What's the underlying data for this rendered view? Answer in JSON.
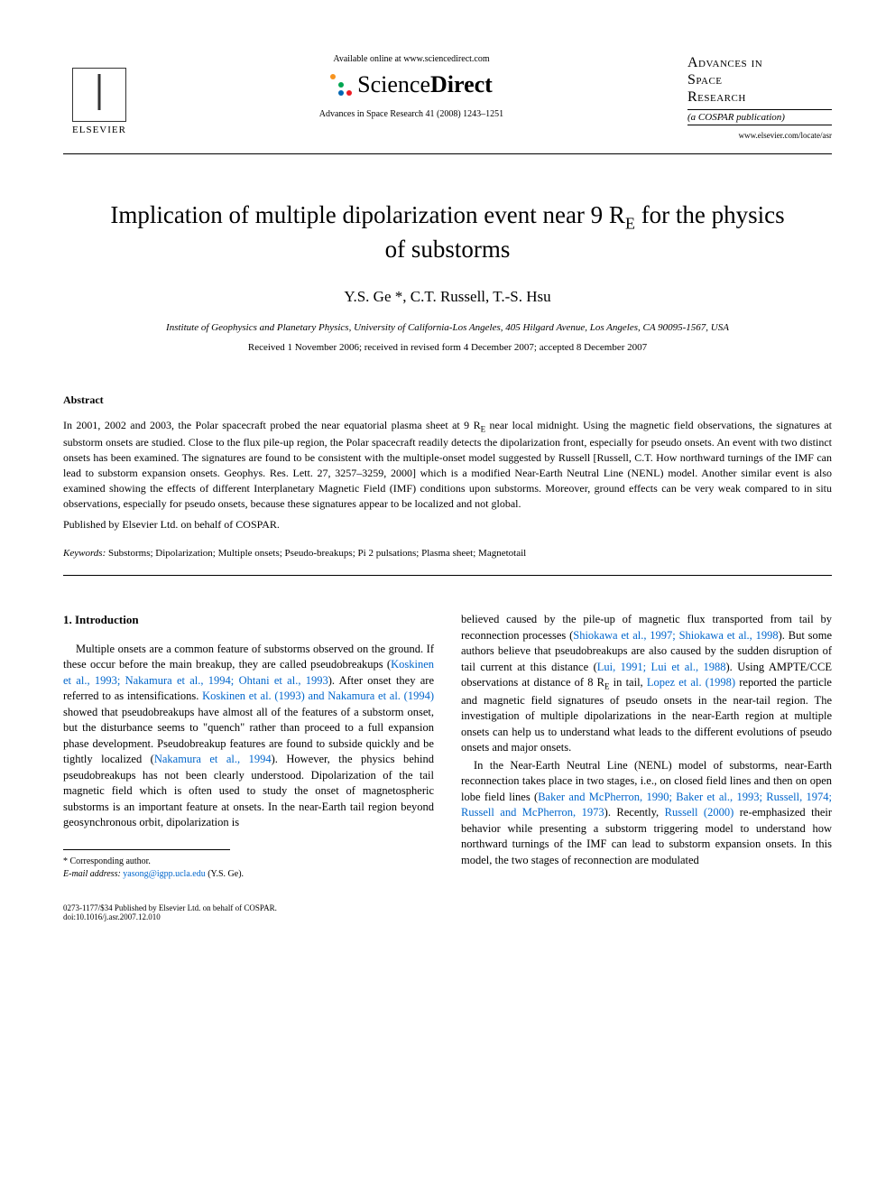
{
  "header": {
    "elsevier_label": "ELSEVIER",
    "available_text": "Available online at www.sciencedirect.com",
    "sciencedirect_brand": "ScienceDirect",
    "journal_ref": "Advances in Space Research 41 (2008) 1243–1251",
    "journal_title_line1": "Advances in",
    "journal_title_line2": "Space",
    "journal_title_line3": "Research",
    "journal_sub": "(a COSPAR publication)",
    "journal_url": "www.elsevier.com/locate/asr",
    "sd_dot_colors": [
      "#f7931e",
      "#fff",
      "#fff",
      "#fff",
      "#00a651",
      "#fff",
      "#fff",
      "#0066b3",
      "#ed1c24"
    ]
  },
  "title_html": "Implication of multiple dipolarization event near 9 R<sub>E</sub> for the physics of substorms",
  "authors": "Y.S. Ge *, C.T. Russell, T.-S. Hsu",
  "affiliation": "Institute of Geophysics and Planetary Physics, University of California-Los Angeles, 405 Hilgard Avenue, Los Angeles, CA 90095-1567, USA",
  "dates": "Received 1 November 2006; received in revised form 4 December 2007; accepted 8 December 2007",
  "abstract": {
    "heading": "Abstract",
    "body_html": "In 2001, 2002 and 2003, the Polar spacecraft probed the near equatorial plasma sheet at 9 R<sub>E</sub> near local midnight. Using the magnetic field observations, the signatures at substorm onsets are studied. Close to the flux pile-up region, the Polar spacecraft readily detects the dipolarization front, especially for pseudo onsets. An event with two distinct onsets has been examined. The signatures are found to be consistent with the multiple-onset model suggested by Russell [Russell, C.T. How northward turnings of the IMF can lead to substorm expansion onsets. Geophys. Res. Lett. 27, 3257–3259, 2000] which is a modified Near-Earth Neutral Line (NENL) model. Another similar event is also examined showing the effects of different Interplanetary Magnetic Field (IMF) conditions upon substorms. Moreover, ground effects can be very weak compared to in situ observations, especially for pseudo onsets, because these signatures appear to be localized and not global.",
    "published": "Published by Elsevier Ltd. on behalf of COSPAR."
  },
  "keywords": {
    "label": "Keywords:",
    "list": "Substorms; Dipolarization; Multiple onsets; Pseudo-breakups; Pi 2 pulsations; Plasma sheet; Magnetotail"
  },
  "section1": {
    "heading": "1. Introduction",
    "col1_html": "Multiple onsets are a common feature of substorms observed on the ground. If these occur before the main breakup, they are called pseudobreakups (<span class=\"cite\">Koskinen et al., 1993; Nakamura et al., 1994; Ohtani et al., 1993</span>). After onset they are referred to as intensifications. <span class=\"cite\">Koskinen et al. (1993) and Nakamura et al. (1994)</span> showed that pseudobreakups have almost all of the features of a substorm onset, but the disturbance seems to \"quench\" rather than proceed to a full expansion phase development. Pseudobreakup features are found to subside quickly and be tightly localized (<span class=\"cite\">Nakamura et al., 1994</span>). However, the physics behind pseudobreakups has not been clearly understood. Dipolarization of the tail magnetic field which is often used to study the onset of magnetospheric substorms is an important feature at onsets. In the near-Earth tail region beyond geosynchronous orbit, dipolarization is",
    "col2_p1_html": "believed caused by the pile-up of magnetic flux transported from tail by reconnection processes (<span class=\"cite\">Shiokawa et al., 1997; Shiokawa et al., 1998</span>). But some authors believe that pseudobreakups are also caused by the sudden disruption of tail current at this distance (<span class=\"cite\">Lui, 1991; Lui et al., 1988</span>). Using AMPTE/CCE observations at distance of 8 R<sub>E</sub> in tail, <span class=\"cite\">Lopez et al. (1998)</span> reported the particle and magnetic field signatures of pseudo onsets in the near-tail region. The investigation of multiple dipolarizations in the near-Earth region at multiple onsets can help us to understand what leads to the different evolutions of pseudo onsets and major onsets.",
    "col2_p2_html": "In the Near-Earth Neutral Line (NENL) model of substorms, near-Earth reconnection takes place in two stages, i.e., on closed field lines and then on open lobe field lines (<span class=\"cite\">Baker and McPherron, 1990; Baker et al., 1993; Russell, 1974; Russell and McPherron, 1973</span>). Recently, <span class=\"cite\">Russell (2000)</span> re-emphasized their behavior while presenting a substorm triggering model to understand how northward turnings of the IMF can lead to substorm expansion onsets. In this model, the two stages of reconnection are modulated"
  },
  "footnote": {
    "corresponding": "* Corresponding author.",
    "email_label": "E-mail address:",
    "email": "yasong@igpp.ucla.edu",
    "email_attribution": "(Y.S. Ge)."
  },
  "footer": {
    "copyright": "0273-1177/$34 Published by Elsevier Ltd. on behalf of COSPAR.",
    "doi": "doi:10.1016/j.asr.2007.12.010"
  },
  "colors": {
    "citation": "#0066cc",
    "text": "#000000",
    "background": "#ffffff"
  },
  "fonts": {
    "body_family": "Georgia, Times New Roman, serif",
    "title_size_pt": 20,
    "body_size_pt": 9,
    "abstract_size_pt": 9,
    "authors_size_pt": 13
  }
}
